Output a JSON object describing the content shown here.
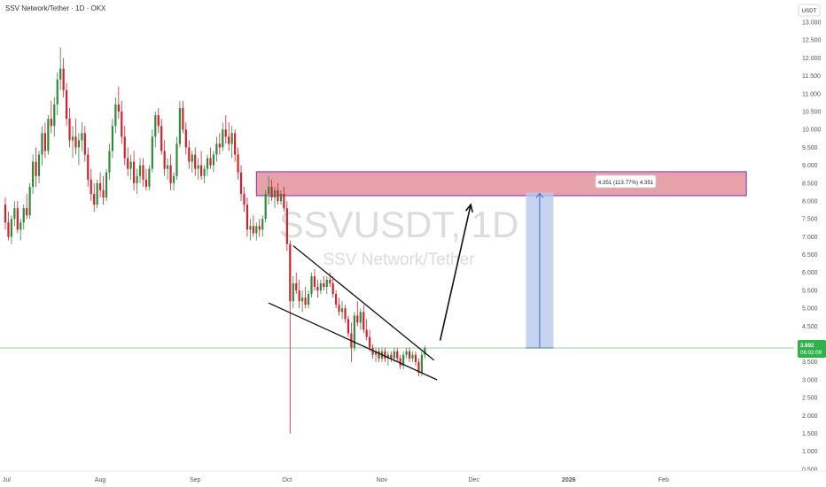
{
  "header": {
    "title": "SSV Network/Tether · 1D · OKX"
  },
  "watermark": {
    "symbol": "SSVUSDT, 1D",
    "name": "SSV Network/Tether"
  },
  "price_scale": {
    "currency": "USDT"
  },
  "last_price": {
    "value": "3.892",
    "countdown": "06:02:09"
  },
  "measure_label": "4.351 (113.77%) 4.351",
  "colors": {
    "up": "#2e8b3a",
    "down": "#d61f2c",
    "resistance_fill": "#e3929a",
    "resistance_border": "#7a2fb8",
    "target_fill": "#b9c9ec",
    "target_line": "#3f6ad8",
    "last_price": "#2fb24c"
  },
  "chart_data": {
    "type": "candlestick",
    "title": "SSV Network/Tether · 1D · OKX",
    "symbol": "SSVUSDT",
    "interval": "1D",
    "exchange": "OKX",
    "ylim": [
      0.5,
      13.25
    ],
    "y_ticks": [
      "13.000",
      "12.500",
      "12.000",
      "11.500",
      "11.000",
      "10.500",
      "10.000",
      "9.500",
      "9.000",
      "8.500",
      "8.000",
      "7.500",
      "7.000",
      "6.500",
      "6.000",
      "5.500",
      "5.000",
      "4.500",
      "4.000",
      "3.500",
      "3.000",
      "2.500",
      "2.000",
      "1.500",
      "1.000",
      "0.500"
    ],
    "x_ticks": [
      "Jul",
      "Aug",
      "Sep",
      "Oct",
      "Nov",
      "Dec",
      "2026",
      "Feb"
    ],
    "x_tick_days": [
      0,
      31,
      62,
      92,
      123,
      153,
      184,
      215
    ],
    "candles": [
      {
        "d": 0,
        "o": 7.9,
        "h": 8.1,
        "l": 7.2,
        "c": 7.4
      },
      {
        "d": 1,
        "o": 7.4,
        "h": 7.7,
        "l": 6.9,
        "c": 7.0
      },
      {
        "d": 2,
        "o": 7.0,
        "h": 7.6,
        "l": 6.8,
        "c": 7.5
      },
      {
        "d": 3,
        "o": 7.5,
        "h": 8.0,
        "l": 7.3,
        "c": 7.8
      },
      {
        "d": 4,
        "o": 7.8,
        "h": 8.0,
        "l": 7.1,
        "c": 7.2
      },
      {
        "d": 5,
        "o": 7.2,
        "h": 7.5,
        "l": 6.9,
        "c": 7.4
      },
      {
        "d": 6,
        "o": 7.4,
        "h": 7.9,
        "l": 7.2,
        "c": 7.8
      },
      {
        "d": 7,
        "o": 7.8,
        "h": 8.2,
        "l": 7.5,
        "c": 7.6
      },
      {
        "d": 8,
        "o": 7.6,
        "h": 8.5,
        "l": 7.5,
        "c": 8.4
      },
      {
        "d": 9,
        "o": 8.4,
        "h": 9.3,
        "l": 8.2,
        "c": 9.1
      },
      {
        "d": 10,
        "o": 9.1,
        "h": 9.5,
        "l": 8.4,
        "c": 8.7
      },
      {
        "d": 11,
        "o": 8.7,
        "h": 9.4,
        "l": 8.5,
        "c": 9.3
      },
      {
        "d": 12,
        "o": 9.3,
        "h": 10.1,
        "l": 9.0,
        "c": 9.9
      },
      {
        "d": 13,
        "o": 9.9,
        "h": 10.2,
        "l": 9.2,
        "c": 9.4
      },
      {
        "d": 14,
        "o": 9.4,
        "h": 10.4,
        "l": 9.3,
        "c": 10.3
      },
      {
        "d": 15,
        "o": 10.3,
        "h": 10.8,
        "l": 9.9,
        "c": 10.1
      },
      {
        "d": 16,
        "o": 10.1,
        "h": 10.9,
        "l": 9.8,
        "c": 10.7
      },
      {
        "d": 17,
        "o": 10.7,
        "h": 11.6,
        "l": 10.4,
        "c": 11.4
      },
      {
        "d": 18,
        "o": 11.4,
        "h": 12.3,
        "l": 11.1,
        "c": 11.7
      },
      {
        "d": 19,
        "o": 11.7,
        "h": 12.0,
        "l": 10.9,
        "c": 11.1
      },
      {
        "d": 20,
        "o": 11.1,
        "h": 11.3,
        "l": 10.1,
        "c": 10.3
      },
      {
        "d": 21,
        "o": 10.3,
        "h": 10.6,
        "l": 9.5,
        "c": 9.7
      },
      {
        "d": 22,
        "o": 9.7,
        "h": 10.1,
        "l": 9.2,
        "c": 9.8
      },
      {
        "d": 23,
        "o": 9.8,
        "h": 10.3,
        "l": 9.3,
        "c": 9.5
      },
      {
        "d": 24,
        "o": 9.5,
        "h": 9.9,
        "l": 9.0,
        "c": 9.7
      },
      {
        "d": 25,
        "o": 9.7,
        "h": 10.2,
        "l": 9.4,
        "c": 9.9
      },
      {
        "d": 26,
        "o": 9.9,
        "h": 10.1,
        "l": 9.1,
        "c": 9.3
      },
      {
        "d": 27,
        "o": 9.3,
        "h": 9.5,
        "l": 8.4,
        "c": 8.6
      },
      {
        "d": 28,
        "o": 8.6,
        "h": 8.9,
        "l": 8.0,
        "c": 8.2
      },
      {
        "d": 29,
        "o": 8.2,
        "h": 8.5,
        "l": 7.7,
        "c": 7.9
      },
      {
        "d": 30,
        "o": 7.9,
        "h": 8.6,
        "l": 7.8,
        "c": 8.5
      },
      {
        "d": 31,
        "o": 8.5,
        "h": 8.8,
        "l": 8.1,
        "c": 8.3
      },
      {
        "d": 32,
        "o": 8.3,
        "h": 8.7,
        "l": 7.9,
        "c": 8.1
      },
      {
        "d": 33,
        "o": 8.1,
        "h": 8.9,
        "l": 8.0,
        "c": 8.8
      },
      {
        "d": 34,
        "o": 8.8,
        "h": 9.6,
        "l": 8.6,
        "c": 9.4
      },
      {
        "d": 35,
        "o": 9.4,
        "h": 10.3,
        "l": 9.2,
        "c": 10.1
      },
      {
        "d": 36,
        "o": 10.1,
        "h": 10.9,
        "l": 9.9,
        "c": 10.7
      },
      {
        "d": 37,
        "o": 10.7,
        "h": 11.2,
        "l": 10.3,
        "c": 10.5
      },
      {
        "d": 38,
        "o": 10.5,
        "h": 10.8,
        "l": 9.6,
        "c": 9.8
      },
      {
        "d": 39,
        "o": 9.8,
        "h": 10.1,
        "l": 9.0,
        "c": 9.2
      },
      {
        "d": 40,
        "o": 9.2,
        "h": 9.5,
        "l": 8.7,
        "c": 8.9
      },
      {
        "d": 41,
        "o": 8.9,
        "h": 9.3,
        "l": 8.6,
        "c": 9.1
      },
      {
        "d": 42,
        "o": 9.1,
        "h": 9.4,
        "l": 8.3,
        "c": 8.5
      },
      {
        "d": 43,
        "o": 8.5,
        "h": 8.9,
        "l": 8.2,
        "c": 8.7
      },
      {
        "d": 44,
        "o": 8.7,
        "h": 9.2,
        "l": 8.5,
        "c": 9.0
      },
      {
        "d": 45,
        "o": 9.0,
        "h": 9.2,
        "l": 8.4,
        "c": 8.6
      },
      {
        "d": 46,
        "o": 8.6,
        "h": 8.9,
        "l": 8.3,
        "c": 8.4
      },
      {
        "d": 47,
        "o": 8.4,
        "h": 9.0,
        "l": 8.3,
        "c": 8.9
      },
      {
        "d": 48,
        "o": 8.9,
        "h": 10.0,
        "l": 8.8,
        "c": 9.8
      },
      {
        "d": 49,
        "o": 9.8,
        "h": 10.5,
        "l": 9.5,
        "c": 10.4
      },
      {
        "d": 50,
        "o": 10.4,
        "h": 10.6,
        "l": 9.9,
        "c": 10.1
      },
      {
        "d": 51,
        "o": 10.1,
        "h": 10.3,
        "l": 9.3,
        "c": 9.4
      },
      {
        "d": 52,
        "o": 9.4,
        "h": 9.7,
        "l": 8.7,
        "c": 8.9
      },
      {
        "d": 53,
        "o": 8.9,
        "h": 9.2,
        "l": 8.6,
        "c": 9.0
      },
      {
        "d": 54,
        "o": 9.0,
        "h": 9.3,
        "l": 8.3,
        "c": 8.5
      },
      {
        "d": 55,
        "o": 8.5,
        "h": 8.8,
        "l": 8.3,
        "c": 8.7
      },
      {
        "d": 56,
        "o": 8.7,
        "h": 9.8,
        "l": 8.6,
        "c": 9.6
      },
      {
        "d": 57,
        "o": 9.6,
        "h": 10.8,
        "l": 9.5,
        "c": 10.6
      },
      {
        "d": 58,
        "o": 10.6,
        "h": 10.8,
        "l": 9.9,
        "c": 10.0
      },
      {
        "d": 59,
        "o": 10.0,
        "h": 10.2,
        "l": 9.3,
        "c": 9.5
      },
      {
        "d": 60,
        "o": 9.5,
        "h": 9.7,
        "l": 8.9,
        "c": 9.1
      },
      {
        "d": 61,
        "o": 9.1,
        "h": 9.4,
        "l": 8.8,
        "c": 9.3
      },
      {
        "d": 62,
        "o": 9.3,
        "h": 9.5,
        "l": 8.7,
        "c": 8.9
      },
      {
        "d": 63,
        "o": 8.9,
        "h": 9.2,
        "l": 8.6,
        "c": 9.0
      },
      {
        "d": 64,
        "o": 9.0,
        "h": 9.4,
        "l": 8.6,
        "c": 8.7
      },
      {
        "d": 65,
        "o": 8.7,
        "h": 9.0,
        "l": 8.5,
        "c": 8.9
      },
      {
        "d": 66,
        "o": 8.9,
        "h": 9.3,
        "l": 8.7,
        "c": 9.2
      },
      {
        "d": 67,
        "o": 9.2,
        "h": 9.5,
        "l": 8.9,
        "c": 9.0
      },
      {
        "d": 68,
        "o": 9.0,
        "h": 9.4,
        "l": 8.8,
        "c": 9.3
      },
      {
        "d": 69,
        "o": 9.3,
        "h": 9.8,
        "l": 9.1,
        "c": 9.6
      },
      {
        "d": 70,
        "o": 9.6,
        "h": 9.9,
        "l": 9.3,
        "c": 9.5
      },
      {
        "d": 71,
        "o": 9.5,
        "h": 10.2,
        "l": 9.4,
        "c": 10.0
      },
      {
        "d": 72,
        "o": 10.0,
        "h": 10.4,
        "l": 9.6,
        "c": 9.8
      },
      {
        "d": 73,
        "o": 9.8,
        "h": 10.2,
        "l": 9.4,
        "c": 9.6
      },
      {
        "d": 74,
        "o": 9.6,
        "h": 10.1,
        "l": 9.2,
        "c": 9.9
      },
      {
        "d": 75,
        "o": 9.9,
        "h": 10.0,
        "l": 9.1,
        "c": 9.3
      },
      {
        "d": 76,
        "o": 9.3,
        "h": 9.5,
        "l": 8.6,
        "c": 8.8
      },
      {
        "d": 77,
        "o": 8.8,
        "h": 9.0,
        "l": 8.0,
        "c": 8.2
      },
      {
        "d": 78,
        "o": 8.2,
        "h": 8.4,
        "l": 7.7,
        "c": 7.9
      },
      {
        "d": 79,
        "o": 7.9,
        "h": 8.1,
        "l": 7.0,
        "c": 7.2
      },
      {
        "d": 80,
        "o": 7.2,
        "h": 7.5,
        "l": 6.9,
        "c": 7.3
      },
      {
        "d": 81,
        "o": 7.3,
        "h": 7.6,
        "l": 7.0,
        "c": 7.1
      },
      {
        "d": 82,
        "o": 7.1,
        "h": 7.4,
        "l": 6.9,
        "c": 7.3
      },
      {
        "d": 83,
        "o": 7.3,
        "h": 7.5,
        "l": 7.0,
        "c": 7.2
      },
      {
        "d": 84,
        "o": 7.2,
        "h": 7.6,
        "l": 7.0,
        "c": 7.5
      },
      {
        "d": 85,
        "o": 7.5,
        "h": 8.3,
        "l": 7.4,
        "c": 8.2
      },
      {
        "d": 86,
        "o": 8.2,
        "h": 8.7,
        "l": 7.9,
        "c": 8.4
      },
      {
        "d": 87,
        "o": 8.4,
        "h": 8.6,
        "l": 8.0,
        "c": 8.1
      },
      {
        "d": 88,
        "o": 8.1,
        "h": 8.4,
        "l": 7.8,
        "c": 8.3
      },
      {
        "d": 89,
        "o": 8.3,
        "h": 8.5,
        "l": 7.9,
        "c": 8.0
      },
      {
        "d": 90,
        "o": 8.0,
        "h": 8.3,
        "l": 7.9,
        "c": 8.2
      },
      {
        "d": 91,
        "o": 8.2,
        "h": 8.4,
        "l": 7.7,
        "c": 7.8
      },
      {
        "d": 92,
        "o": 7.8,
        "h": 8.0,
        "l": 6.6,
        "c": 6.8
      },
      {
        "d": 93,
        "o": 6.8,
        "h": 6.9,
        "l": 1.5,
        "c": 5.2
      },
      {
        "d": 94,
        "o": 5.2,
        "h": 5.9,
        "l": 5.0,
        "c": 5.7
      },
      {
        "d": 95,
        "o": 5.7,
        "h": 6.0,
        "l": 5.4,
        "c": 5.5
      },
      {
        "d": 96,
        "o": 5.5,
        "h": 5.8,
        "l": 5.0,
        "c": 5.2
      },
      {
        "d": 97,
        "o": 5.2,
        "h": 5.5,
        "l": 4.9,
        "c": 5.3
      },
      {
        "d": 98,
        "o": 5.3,
        "h": 5.6,
        "l": 5.0,
        "c": 5.1
      },
      {
        "d": 99,
        "o": 5.1,
        "h": 5.5,
        "l": 5.0,
        "c": 5.4
      },
      {
        "d": 100,
        "o": 5.4,
        "h": 6.0,
        "l": 5.3,
        "c": 5.9
      },
      {
        "d": 101,
        "o": 5.9,
        "h": 6.1,
        "l": 5.5,
        "c": 5.6
      },
      {
        "d": 102,
        "o": 5.6,
        "h": 5.8,
        "l": 5.3,
        "c": 5.5
      },
      {
        "d": 103,
        "o": 5.5,
        "h": 5.8,
        "l": 5.4,
        "c": 5.7
      },
      {
        "d": 104,
        "o": 5.7,
        "h": 5.9,
        "l": 5.5,
        "c": 5.6
      },
      {
        "d": 105,
        "o": 5.6,
        "h": 5.9,
        "l": 5.4,
        "c": 5.8
      },
      {
        "d": 106,
        "o": 5.8,
        "h": 6.0,
        "l": 5.6,
        "c": 5.7
      },
      {
        "d": 107,
        "o": 5.7,
        "h": 5.9,
        "l": 5.3,
        "c": 5.4
      },
      {
        "d": 108,
        "o": 5.4,
        "h": 5.5,
        "l": 5.0,
        "c": 5.1
      },
      {
        "d": 109,
        "o": 5.1,
        "h": 5.3,
        "l": 4.8,
        "c": 4.9
      },
      {
        "d": 110,
        "o": 4.9,
        "h": 5.2,
        "l": 4.7,
        "c": 5.0
      },
      {
        "d": 111,
        "o": 5.0,
        "h": 5.1,
        "l": 4.6,
        "c": 4.7
      },
      {
        "d": 112,
        "o": 4.7,
        "h": 4.8,
        "l": 4.2,
        "c": 4.3
      },
      {
        "d": 113,
        "o": 4.3,
        "h": 4.6,
        "l": 3.5,
        "c": 3.9
      },
      {
        "d": 114,
        "o": 3.9,
        "h": 4.9,
        "l": 3.8,
        "c": 4.8
      },
      {
        "d": 115,
        "o": 4.8,
        "h": 5.2,
        "l": 4.5,
        "c": 4.6
      },
      {
        "d": 116,
        "o": 4.6,
        "h": 5.0,
        "l": 4.4,
        "c": 4.9
      },
      {
        "d": 117,
        "o": 4.9,
        "h": 5.1,
        "l": 4.3,
        "c": 4.4
      },
      {
        "d": 118,
        "o": 4.4,
        "h": 4.7,
        "l": 4.1,
        "c": 4.2
      },
      {
        "d": 119,
        "o": 4.2,
        "h": 4.4,
        "l": 3.8,
        "c": 3.9
      },
      {
        "d": 120,
        "o": 3.9,
        "h": 4.0,
        "l": 3.6,
        "c": 3.7
      },
      {
        "d": 121,
        "o": 3.7,
        "h": 3.9,
        "l": 3.5,
        "c": 3.8
      },
      {
        "d": 122,
        "o": 3.8,
        "h": 3.9,
        "l": 3.5,
        "c": 3.6
      },
      {
        "d": 123,
        "o": 3.6,
        "h": 3.9,
        "l": 3.5,
        "c": 3.8
      },
      {
        "d": 124,
        "o": 3.8,
        "h": 3.9,
        "l": 3.5,
        "c": 3.6
      },
      {
        "d": 125,
        "o": 3.6,
        "h": 3.8,
        "l": 3.4,
        "c": 3.7
      },
      {
        "d": 126,
        "o": 3.7,
        "h": 3.8,
        "l": 3.5,
        "c": 3.6
      },
      {
        "d": 127,
        "o": 3.6,
        "h": 3.9,
        "l": 3.5,
        "c": 3.8
      },
      {
        "d": 128,
        "o": 3.8,
        "h": 3.9,
        "l": 3.5,
        "c": 3.6
      },
      {
        "d": 129,
        "o": 3.6,
        "h": 3.7,
        "l": 3.3,
        "c": 3.4
      },
      {
        "d": 130,
        "o": 3.4,
        "h": 3.8,
        "l": 3.3,
        "c": 3.7
      },
      {
        "d": 131,
        "o": 3.7,
        "h": 3.9,
        "l": 3.6,
        "c": 3.8
      },
      {
        "d": 132,
        "o": 3.8,
        "h": 3.9,
        "l": 3.5,
        "c": 3.6
      },
      {
        "d": 133,
        "o": 3.6,
        "h": 3.8,
        "l": 3.5,
        "c": 3.7
      },
      {
        "d": 134,
        "o": 3.7,
        "h": 3.8,
        "l": 3.4,
        "c": 3.5
      },
      {
        "d": 135,
        "o": 3.5,
        "h": 3.6,
        "l": 3.1,
        "c": 3.2
      },
      {
        "d": 136,
        "o": 3.2,
        "h": 3.8,
        "l": 3.1,
        "c": 3.7
      },
      {
        "d": 137,
        "o": 3.7,
        "h": 3.95,
        "l": 3.6,
        "c": 3.89
      }
    ],
    "last_price": 3.892,
    "annotations": {
      "resistance_zone": {
        "x0": 82,
        "x1": 242,
        "y0": 8.15,
        "y1": 8.82
      },
      "wedge_upper": {
        "x0": 94,
        "y0": 6.75,
        "x1": 140,
        "y1": 3.55
      },
      "wedge_lower": {
        "x0": 86,
        "y0": 5.15,
        "x1": 141,
        "y1": 3.0
      },
      "projection_arrow": {
        "x0": 142,
        "y0": 4.1,
        "x1": 152,
        "y1": 7.9
      },
      "target_range": {
        "x0": 170,
        "x1": 179,
        "y0": 3.892,
        "y1": 8.24
      },
      "measure_text": "4.351 (113.77%) 4.351"
    }
  }
}
